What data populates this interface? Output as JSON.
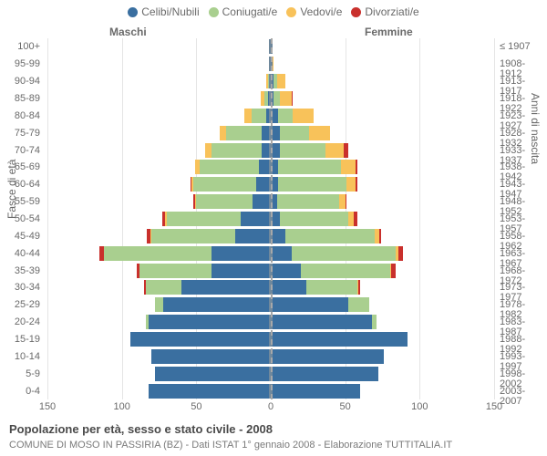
{
  "chart": {
    "type": "population-pyramid",
    "title": "Popolazione per età, sesso e stato civile - 2008",
    "subtitle": "COMUNE DI MOSO IN PASSIRIA (BZ) - Dati ISTAT 1° gennaio 2008 - Elaborazione TUTTITALIA.IT",
    "legend_items": [
      {
        "label": "Celibi/Nubili",
        "color": "#3a6fa0"
      },
      {
        "label": "Coniugati/e",
        "color": "#a9cf8f"
      },
      {
        "label": "Vedovi/e",
        "color": "#f8c25a"
      },
      {
        "label": "Divorziati/e",
        "color": "#c9302c"
      }
    ],
    "gender_labels": {
      "male": "Maschi",
      "female": "Femmine"
    },
    "axis_left_title": "Fasce di età",
    "axis_right_title": "Anni di nascita",
    "colors": {
      "grid": "#e5e5e5",
      "center_line": "#a8a8a8",
      "text": "#6a6a6a",
      "center_bar": "#6f889c"
    },
    "x_axis": {
      "max": 150,
      "ticks_right": [
        0,
        50,
        100,
        150
      ],
      "ticks_left": [
        50,
        100,
        150
      ]
    },
    "age_bands": [
      {
        "age": "100+",
        "birth": "≤ 1907",
        "m": {
          "s": 0,
          "m": 0,
          "w": 0,
          "d": 0
        },
        "f": {
          "s": 0,
          "m": 0,
          "w": 0,
          "d": 0
        }
      },
      {
        "age": "95-99",
        "birth": "1908-1912",
        "m": {
          "s": 0,
          "m": 0,
          "w": 0,
          "d": 0
        },
        "f": {
          "s": 0,
          "m": 0,
          "w": 2,
          "d": 0
        }
      },
      {
        "age": "90-94",
        "birth": "1913-1917",
        "m": {
          "s": 1,
          "m": 1,
          "w": 1,
          "d": 0
        },
        "f": {
          "s": 2,
          "m": 2,
          "w": 6,
          "d": 0
        }
      },
      {
        "age": "85-89",
        "birth": "1918-1922",
        "m": {
          "s": 2,
          "m": 2,
          "w": 3,
          "d": 0
        },
        "f": {
          "s": 2,
          "m": 4,
          "w": 8,
          "d": 1
        }
      },
      {
        "age": "80-84",
        "birth": "1923-1927",
        "m": {
          "s": 3,
          "m": 10,
          "w": 5,
          "d": 0
        },
        "f": {
          "s": 5,
          "m": 10,
          "w": 14,
          "d": 0
        }
      },
      {
        "age": "75-79",
        "birth": "1928-1932",
        "m": {
          "s": 6,
          "m": 24,
          "w": 4,
          "d": 0
        },
        "f": {
          "s": 6,
          "m": 20,
          "w": 14,
          "d": 0
        }
      },
      {
        "age": "70-74",
        "birth": "1933-1937",
        "m": {
          "s": 6,
          "m": 34,
          "w": 4,
          "d": 0
        },
        "f": {
          "s": 6,
          "m": 31,
          "w": 12,
          "d": 3
        }
      },
      {
        "age": "65-69",
        "birth": "1938-1942",
        "m": {
          "s": 8,
          "m": 40,
          "w": 3,
          "d": 0
        },
        "f": {
          "s": 5,
          "m": 42,
          "w": 10,
          "d": 1
        }
      },
      {
        "age": "60-64",
        "birth": "1943-1947",
        "m": {
          "s": 10,
          "m": 42,
          "w": 1,
          "d": 1
        },
        "f": {
          "s": 5,
          "m": 46,
          "w": 6,
          "d": 1
        }
      },
      {
        "age": "55-59",
        "birth": "1948-1952",
        "m": {
          "s": 12,
          "m": 38,
          "w": 1,
          "d": 1
        },
        "f": {
          "s": 4,
          "m": 42,
          "w": 4,
          "d": 1
        }
      },
      {
        "age": "50-54",
        "birth": "1953-1957",
        "m": {
          "s": 20,
          "m": 50,
          "w": 1,
          "d": 2
        },
        "f": {
          "s": 6,
          "m": 46,
          "w": 4,
          "d": 2
        }
      },
      {
        "age": "45-49",
        "birth": "1958-1962",
        "m": {
          "s": 24,
          "m": 56,
          "w": 1,
          "d": 2
        },
        "f": {
          "s": 10,
          "m": 60,
          "w": 3,
          "d": 1
        }
      },
      {
        "age": "40-44",
        "birth": "1963-1967",
        "m": {
          "s": 40,
          "m": 72,
          "w": 0,
          "d": 3
        },
        "f": {
          "s": 14,
          "m": 70,
          "w": 2,
          "d": 3
        }
      },
      {
        "age": "35-39",
        "birth": "1968-1972",
        "m": {
          "s": 40,
          "m": 48,
          "w": 0,
          "d": 2
        },
        "f": {
          "s": 20,
          "m": 60,
          "w": 1,
          "d": 3
        }
      },
      {
        "age": "30-34",
        "birth": "1973-1977",
        "m": {
          "s": 60,
          "m": 24,
          "w": 0,
          "d": 1
        },
        "f": {
          "s": 24,
          "m": 34,
          "w": 1,
          "d": 1
        }
      },
      {
        "age": "25-29",
        "birth": "1978-1982",
        "m": {
          "s": 72,
          "m": 6,
          "w": 0,
          "d": 0
        },
        "f": {
          "s": 52,
          "m": 14,
          "w": 0,
          "d": 0
        }
      },
      {
        "age": "20-24",
        "birth": "1983-1987",
        "m": {
          "s": 82,
          "m": 2,
          "w": 0,
          "d": 0
        },
        "f": {
          "s": 68,
          "m": 3,
          "w": 0,
          "d": 0
        }
      },
      {
        "age": "15-19",
        "birth": "1988-1992",
        "m": {
          "s": 94,
          "m": 0,
          "w": 0,
          "d": 0
        },
        "f": {
          "s": 92,
          "m": 0,
          "w": 0,
          "d": 0
        }
      },
      {
        "age": "10-14",
        "birth": "1993-1997",
        "m": {
          "s": 80,
          "m": 0,
          "w": 0,
          "d": 0
        },
        "f": {
          "s": 76,
          "m": 0,
          "w": 0,
          "d": 0
        }
      },
      {
        "age": "5-9",
        "birth": "1998-2002",
        "m": {
          "s": 78,
          "m": 0,
          "w": 0,
          "d": 0
        },
        "f": {
          "s": 72,
          "m": 0,
          "w": 0,
          "d": 0
        }
      },
      {
        "age": "0-4",
        "birth": "2003-2007",
        "m": {
          "s": 82,
          "m": 0,
          "w": 0,
          "d": 0
        },
        "f": {
          "s": 60,
          "m": 0,
          "w": 0,
          "d": 0
        }
      }
    ]
  }
}
